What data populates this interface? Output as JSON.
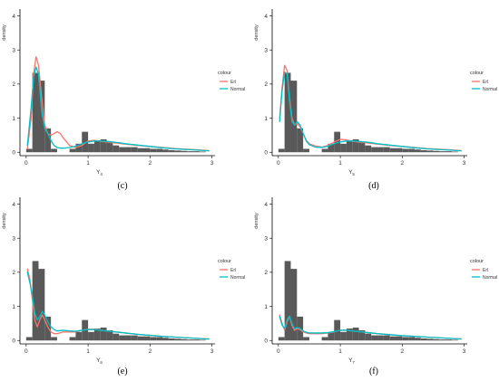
{
  "colors": {
    "bars": "#595959",
    "axis": "#000000",
    "text": "#333333",
    "erl_line": "#F8766D",
    "normal_line": "#00BFC4",
    "background": "#ffffff"
  },
  "chart_data": [
    {
      "type": "bar",
      "panel_label": "(c)",
      "xlabel_main": "Y",
      "xlabel_sub": "4",
      "ylabel": "density",
      "xlim": [
        -0.1,
        3.05
      ],
      "ylim": [
        -0.1,
        4.2
      ],
      "xticks": [
        "0",
        "1",
        "2",
        "3"
      ],
      "yticks": [
        "0",
        "1",
        "2",
        "3",
        "4"
      ],
      "legend": {
        "title": "colour",
        "position": "right",
        "entries": [
          "Erl",
          "Normal"
        ]
      },
      "histogram": {
        "bin_width": 0.1,
        "left_edges": [
          0.0,
          0.1,
          0.2,
          0.3,
          0.4,
          0.5,
          0.6,
          0.7,
          0.8,
          0.9,
          1.0,
          1.1,
          1.2,
          1.3,
          1.4,
          1.5,
          1.6,
          1.7,
          1.8,
          1.9,
          2.0,
          2.1,
          2.2,
          2.3,
          2.4,
          2.5,
          2.6,
          2.7,
          2.8
        ],
        "values": [
          0.1,
          2.33,
          2.1,
          0.7,
          0.1,
          0.0,
          0.0,
          0.1,
          0.25,
          0.6,
          0.25,
          0.35,
          0.38,
          0.3,
          0.2,
          0.15,
          0.15,
          0.15,
          0.12,
          0.12,
          0.1,
          0.1,
          0.08,
          0.06,
          0.05,
          0.04,
          0.03,
          0.03,
          0.02
        ]
      },
      "series": [
        {
          "name": "Erl",
          "x": [
            0.02,
            0.08,
            0.12,
            0.16,
            0.2,
            0.25,
            0.3,
            0.35,
            0.4,
            0.45,
            0.5,
            0.55,
            0.6,
            0.7,
            0.8,
            0.9,
            1.0,
            1.1,
            1.2,
            1.3,
            1.4,
            1.5,
            1.6,
            1.8,
            2.0,
            2.2,
            2.4,
            2.6,
            2.8,
            2.95
          ],
          "y": [
            0.1,
            1.0,
            2.3,
            2.8,
            2.55,
            1.6,
            0.8,
            0.55,
            0.5,
            0.55,
            0.6,
            0.55,
            0.42,
            0.2,
            0.14,
            0.2,
            0.33,
            0.35,
            0.32,
            0.3,
            0.28,
            0.26,
            0.24,
            0.2,
            0.17,
            0.14,
            0.11,
            0.09,
            0.07,
            0.05
          ]
        },
        {
          "name": "Normal",
          "x": [
            0.02,
            0.08,
            0.12,
            0.16,
            0.2,
            0.25,
            0.3,
            0.35,
            0.4,
            0.45,
            0.5,
            0.55,
            0.6,
            0.7,
            0.8,
            0.9,
            1.0,
            1.1,
            1.2,
            1.3,
            1.4,
            1.5,
            1.6,
            1.8,
            2.0,
            2.2,
            2.4,
            2.6,
            2.8,
            2.95
          ],
          "y": [
            0.2,
            1.3,
            2.2,
            2.5,
            2.3,
            1.2,
            0.7,
            0.55,
            0.35,
            0.2,
            0.14,
            0.12,
            0.12,
            0.14,
            0.18,
            0.25,
            0.3,
            0.33,
            0.33,
            0.32,
            0.3,
            0.28,
            0.25,
            0.21,
            0.17,
            0.13,
            0.1,
            0.08,
            0.06,
            0.04
          ]
        }
      ]
    },
    {
      "type": "bar",
      "panel_label": "(d)",
      "xlabel_main": "Y",
      "xlabel_sub": "5",
      "ylabel": "density",
      "xlim": [
        -0.1,
        3.05
      ],
      "ylim": [
        -0.1,
        4.2
      ],
      "xticks": [
        "0",
        "1",
        "2",
        "3"
      ],
      "yticks": [
        "0",
        "1",
        "2",
        "3",
        "4"
      ],
      "legend": {
        "title": "colour",
        "position": "right",
        "entries": [
          "Erl",
          "Normal"
        ]
      },
      "histogram": {
        "bin_width": 0.1,
        "left_edges": [
          0.0,
          0.1,
          0.2,
          0.3,
          0.4,
          0.5,
          0.6,
          0.7,
          0.8,
          0.9,
          1.0,
          1.1,
          1.2,
          1.3,
          1.4,
          1.5,
          1.6,
          1.7,
          1.8,
          1.9,
          2.0,
          2.1,
          2.2,
          2.3,
          2.4,
          2.5,
          2.6,
          2.7,
          2.8
        ],
        "values": [
          0.1,
          2.33,
          2.1,
          0.7,
          0.1,
          0.0,
          0.0,
          0.1,
          0.25,
          0.6,
          0.25,
          0.35,
          0.38,
          0.3,
          0.2,
          0.15,
          0.15,
          0.15,
          0.12,
          0.12,
          0.1,
          0.1,
          0.08,
          0.06,
          0.05,
          0.04,
          0.03,
          0.03,
          0.02
        ]
      },
      "series": [
        {
          "name": "Erl",
          "x": [
            0.02,
            0.06,
            0.1,
            0.14,
            0.18,
            0.22,
            0.26,
            0.3,
            0.35,
            0.4,
            0.45,
            0.5,
            0.6,
            0.7,
            0.8,
            0.9,
            1.0,
            1.1,
            1.2,
            1.3,
            1.4,
            1.5,
            1.6,
            1.8,
            2.0,
            2.2,
            2.4,
            2.6,
            2.8,
            2.95
          ],
          "y": [
            1.0,
            1.9,
            2.55,
            2.4,
            1.6,
            1.0,
            0.8,
            0.85,
            0.75,
            0.55,
            0.35,
            0.25,
            0.18,
            0.15,
            0.2,
            0.3,
            0.38,
            0.36,
            0.32,
            0.3,
            0.28,
            0.26,
            0.24,
            0.2,
            0.17,
            0.14,
            0.11,
            0.09,
            0.07,
            0.05
          ]
        },
        {
          "name": "Normal",
          "x": [
            0.02,
            0.06,
            0.1,
            0.14,
            0.18,
            0.22,
            0.26,
            0.3,
            0.35,
            0.4,
            0.45,
            0.5,
            0.6,
            0.7,
            0.8,
            0.9,
            1.0,
            1.1,
            1.2,
            1.3,
            1.4,
            1.5,
            1.6,
            1.8,
            2.0,
            2.2,
            2.4,
            2.6,
            2.8,
            2.95
          ],
          "y": [
            0.9,
            1.8,
            2.35,
            2.3,
            1.5,
            0.9,
            0.8,
            0.9,
            0.8,
            0.55,
            0.33,
            0.22,
            0.15,
            0.14,
            0.18,
            0.25,
            0.3,
            0.33,
            0.33,
            0.32,
            0.3,
            0.28,
            0.25,
            0.21,
            0.17,
            0.13,
            0.1,
            0.08,
            0.06,
            0.04
          ]
        }
      ]
    },
    {
      "type": "bar",
      "panel_label": "(e)",
      "xlabel_main": "Y",
      "xlabel_sub": "6",
      "ylabel": "density",
      "xlim": [
        -0.1,
        3.05
      ],
      "ylim": [
        -0.1,
        4.2
      ],
      "xticks": [
        "0",
        "1",
        "2",
        "3"
      ],
      "yticks": [
        "0",
        "1",
        "2",
        "3",
        "4"
      ],
      "legend": {
        "title": "colour",
        "position": "right",
        "entries": [
          "Erl",
          "Normal"
        ]
      },
      "histogram": {
        "bin_width": 0.1,
        "left_edges": [
          0.0,
          0.1,
          0.2,
          0.3,
          0.4,
          0.5,
          0.6,
          0.7,
          0.8,
          0.9,
          1.0,
          1.1,
          1.2,
          1.3,
          1.4,
          1.5,
          1.6,
          1.7,
          1.8,
          1.9,
          2.0,
          2.1,
          2.2,
          2.3,
          2.4,
          2.5,
          2.6,
          2.7,
          2.8
        ],
        "values": [
          0.1,
          2.33,
          2.1,
          0.7,
          0.1,
          0.0,
          0.0,
          0.1,
          0.25,
          0.6,
          0.25,
          0.35,
          0.38,
          0.3,
          0.2,
          0.15,
          0.15,
          0.15,
          0.12,
          0.12,
          0.1,
          0.1,
          0.08,
          0.06,
          0.05,
          0.04,
          0.03,
          0.03,
          0.02
        ]
      },
      "series": [
        {
          "name": "Erl",
          "x": [
            0.02,
            0.06,
            0.1,
            0.14,
            0.18,
            0.22,
            0.26,
            0.3,
            0.35,
            0.4,
            0.45,
            0.5,
            0.6,
            0.7,
            0.8,
            0.9,
            1.0,
            1.1,
            1.2,
            1.3,
            1.4,
            1.5,
            1.6,
            1.8,
            2.0,
            2.2,
            2.4,
            2.6,
            2.8,
            2.95
          ],
          "y": [
            2.1,
            1.8,
            1.2,
            0.6,
            0.4,
            0.6,
            0.75,
            0.6,
            0.4,
            0.25,
            0.2,
            0.2,
            0.25,
            0.25,
            0.25,
            0.3,
            0.33,
            0.33,
            0.3,
            0.28,
            0.26,
            0.24,
            0.22,
            0.18,
            0.15,
            0.12,
            0.1,
            0.08,
            0.06,
            0.05
          ]
        },
        {
          "name": "Normal",
          "x": [
            0.02,
            0.06,
            0.1,
            0.14,
            0.18,
            0.22,
            0.26,
            0.3,
            0.35,
            0.4,
            0.45,
            0.5,
            0.6,
            0.7,
            0.8,
            0.9,
            1.0,
            1.1,
            1.2,
            1.3,
            1.4,
            1.5,
            1.6,
            1.8,
            2.0,
            2.2,
            2.4,
            2.6,
            2.8,
            2.95
          ],
          "y": [
            2.0,
            1.7,
            1.3,
            0.8,
            0.6,
            0.7,
            0.85,
            0.75,
            0.55,
            0.4,
            0.32,
            0.28,
            0.3,
            0.28,
            0.27,
            0.3,
            0.32,
            0.32,
            0.3,
            0.28,
            0.26,
            0.24,
            0.22,
            0.18,
            0.15,
            0.12,
            0.1,
            0.08,
            0.06,
            0.04
          ]
        }
      ]
    },
    {
      "type": "bar",
      "panel_label": "(f)",
      "xlabel_main": "Y",
      "xlabel_sub": "7",
      "ylabel": "density",
      "xlim": [
        -0.1,
        3.05
      ],
      "ylim": [
        -0.1,
        4.2
      ],
      "xticks": [
        "0",
        "1",
        "2",
        "3"
      ],
      "yticks": [
        "0",
        "1",
        "2",
        "3",
        "4"
      ],
      "legend": {
        "title": "colour",
        "position": "right",
        "entries": [
          "Erl",
          "Normal"
        ]
      },
      "histogram": {
        "bin_width": 0.1,
        "left_edges": [
          0.0,
          0.1,
          0.2,
          0.3,
          0.4,
          0.5,
          0.6,
          0.7,
          0.8,
          0.9,
          1.0,
          1.1,
          1.2,
          1.3,
          1.4,
          1.5,
          1.6,
          1.7,
          1.8,
          1.9,
          2.0,
          2.1,
          2.2,
          2.3,
          2.4,
          2.5,
          2.6,
          2.7,
          2.8
        ],
        "values": [
          0.1,
          2.33,
          2.1,
          0.7,
          0.1,
          0.0,
          0.0,
          0.1,
          0.25,
          0.6,
          0.25,
          0.35,
          0.38,
          0.3,
          0.2,
          0.15,
          0.15,
          0.15,
          0.12,
          0.12,
          0.1,
          0.1,
          0.08,
          0.06,
          0.05,
          0.04,
          0.03,
          0.03,
          0.02
        ]
      },
      "series": [
        {
          "name": "Erl",
          "x": [
            0.02,
            0.06,
            0.1,
            0.14,
            0.18,
            0.22,
            0.26,
            0.3,
            0.35,
            0.4,
            0.45,
            0.5,
            0.6,
            0.7,
            0.8,
            0.9,
            1.0,
            1.1,
            1.2,
            1.3,
            1.4,
            1.5,
            1.6,
            1.8,
            2.0,
            2.2,
            2.4,
            2.6,
            2.8,
            2.95
          ],
          "y": [
            0.75,
            0.5,
            0.3,
            0.55,
            0.7,
            0.45,
            0.3,
            0.35,
            0.32,
            0.25,
            0.22,
            0.2,
            0.2,
            0.2,
            0.22,
            0.25,
            0.3,
            0.3,
            0.28,
            0.26,
            0.24,
            0.22,
            0.2,
            0.17,
            0.14,
            0.12,
            0.1,
            0.08,
            0.06,
            0.05
          ]
        },
        {
          "name": "Normal",
          "x": [
            0.02,
            0.06,
            0.1,
            0.14,
            0.18,
            0.22,
            0.26,
            0.3,
            0.35,
            0.4,
            0.45,
            0.5,
            0.6,
            0.7,
            0.8,
            0.9,
            1.0,
            1.1,
            1.2,
            1.3,
            1.4,
            1.5,
            1.6,
            1.8,
            2.0,
            2.2,
            2.4,
            2.6,
            2.8,
            2.95
          ],
          "y": [
            0.7,
            0.45,
            0.35,
            0.6,
            0.72,
            0.5,
            0.35,
            0.38,
            0.35,
            0.28,
            0.24,
            0.22,
            0.22,
            0.22,
            0.23,
            0.26,
            0.3,
            0.3,
            0.28,
            0.26,
            0.24,
            0.22,
            0.2,
            0.17,
            0.14,
            0.12,
            0.1,
            0.08,
            0.06,
            0.04
          ]
        }
      ]
    }
  ]
}
